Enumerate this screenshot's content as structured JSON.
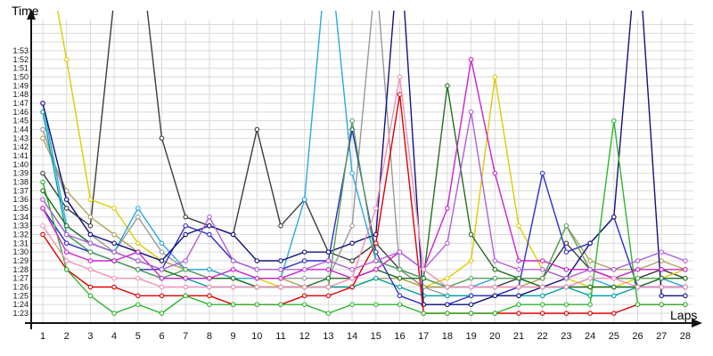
{
  "chart_data": {
    "type": "line",
    "title": "",
    "xlabel": "Laps",
    "ylabel": "Time",
    "x": [
      1,
      2,
      3,
      4,
      5,
      6,
      7,
      8,
      9,
      10,
      11,
      12,
      13,
      14,
      15,
      16,
      17,
      18,
      19,
      20,
      21,
      22,
      23,
      24,
      25,
      26,
      27,
      28
    ],
    "y_tick_labels": [
      "1:23",
      "1:24",
      "1:25",
      "1:26",
      "1:27",
      "1:28",
      "1:29",
      "1:30",
      "1:31",
      "1:32",
      "1:33",
      "1:34",
      "1:35",
      "1:36",
      "1:37",
      "1:38",
      "1:39",
      "1:40",
      "1:41",
      "1:42",
      "1:43",
      "1:44",
      "1:45",
      "1:46",
      "1:47",
      "1:48",
      "1:49",
      "1:50",
      "1:51",
      "1:52",
      "1:53"
    ],
    "y_axis_range": [
      "1:23",
      "1:53"
    ],
    "value_unit": "seconds (83 = 1:23, values above 117 run off the top of the plot)",
    "grid": true,
    "legend": "none",
    "marker": "open-circle",
    "series": [
      {
        "name": "black",
        "color": "#3c3c3c",
        "values": [
          99,
          95,
          93,
          119,
          127,
          103,
          94,
          93,
          92,
          104,
          93,
          96,
          90,
          89,
          91,
          88,
          86,
          86,
          86,
          86,
          87,
          87,
          91,
          88,
          87,
          87,
          88,
          87
        ]
      },
      {
        "name": "gray",
        "color": "#999999",
        "values": [
          104,
          96,
          92,
          90,
          94,
          90,
          88,
          87,
          87,
          87,
          87,
          87,
          87,
          93,
          122,
          88,
          86,
          85,
          85,
          85,
          86,
          86,
          86,
          86,
          86,
          86,
          86,
          86
        ]
      },
      {
        "name": "yellow",
        "color": "#ddcc00",
        "values": [
          127,
          112,
          96,
          95,
          91,
          89,
          88,
          88,
          87,
          87,
          86,
          86,
          86,
          86,
          87,
          87,
          86,
          87,
          89,
          110,
          93,
          88,
          87,
          86,
          86,
          87,
          87,
          88
        ]
      },
      {
        "name": "olive",
        "color": "#b0a060",
        "values": [
          103,
          97,
          94,
          92,
          90,
          89,
          88,
          88,
          87,
          87,
          87,
          86,
          86,
          86,
          87,
          87,
          86,
          86,
          86,
          86,
          86,
          87,
          93,
          89,
          88,
          88,
          89,
          88
        ]
      },
      {
        "name": "cyan",
        "color": "#2aa8e0",
        "values": [
          107,
          93,
          91,
          90,
          95,
          91,
          88,
          88,
          87,
          87,
          87,
          96,
          126,
          99,
          89,
          88,
          87,
          86,
          86,
          87,
          87,
          86,
          86,
          87,
          86,
          86,
          87,
          86
        ]
      },
      {
        "name": "teal",
        "color": "#00a0a0",
        "values": [
          106,
          92,
          90,
          89,
          88,
          87,
          87,
          86,
          86,
          86,
          86,
          86,
          86,
          86,
          87,
          86,
          85,
          85,
          85,
          85,
          85,
          85,
          86,
          85,
          85,
          86,
          86,
          86
        ]
      },
      {
        "name": "blue",
        "color": "#2d2dcc",
        "values": [
          95,
          91,
          90,
          89,
          88,
          88,
          93,
          92,
          89,
          88,
          88,
          89,
          89,
          104,
          90,
          85,
          84,
          84,
          85,
          85,
          86,
          99,
          90,
          91,
          94,
          86,
          86,
          86
        ]
      },
      {
        "name": "navy",
        "color": "#121280",
        "values": [
          107,
          96,
          92,
          91,
          90,
          89,
          92,
          93,
          92,
          89,
          89,
          90,
          90,
          91,
          92,
          126,
          84,
          84,
          84,
          85,
          85,
          86,
          87,
          91,
          94,
          126,
          85,
          85
        ]
      },
      {
        "name": "red",
        "color": "#e00000",
        "values": [
          92,
          88,
          86,
          86,
          85,
          85,
          85,
          85,
          84,
          84,
          84,
          85,
          85,
          86,
          91,
          108,
          83,
          83,
          83,
          83,
          83,
          83,
          83,
          83,
          83,
          84,
          84,
          84
        ]
      },
      {
        "name": "green",
        "color": "#2db52d",
        "values": [
          98,
          88,
          85,
          83,
          84,
          83,
          85,
          84,
          84,
          84,
          84,
          84,
          83,
          84,
          84,
          84,
          83,
          83,
          83,
          83,
          84,
          84,
          84,
          84,
          105,
          84,
          84,
          84
        ]
      },
      {
        "name": "sea-green",
        "color": "#55a055",
        "values": [
          96,
          92,
          90,
          89,
          88,
          87,
          88,
          87,
          87,
          86,
          86,
          86,
          86,
          105,
          89,
          88,
          87,
          86,
          87,
          87,
          87,
          87,
          93,
          88,
          87,
          87,
          87,
          87
        ]
      },
      {
        "name": "dark-green",
        "color": "#207020",
        "values": [
          97,
          93,
          91,
          90,
          89,
          88,
          87,
          87,
          87,
          86,
          86,
          86,
          87,
          87,
          88,
          87,
          87,
          109,
          92,
          88,
          87,
          86,
          86,
          86,
          86,
          86,
          87,
          87
        ]
      },
      {
        "name": "magenta",
        "color": "#cc22cc",
        "values": [
          95,
          90,
          89,
          89,
          90,
          87,
          87,
          87,
          88,
          87,
          87,
          88,
          88,
          87,
          88,
          90,
          88,
          95,
          112,
          99,
          89,
          89,
          88,
          88,
          87,
          88,
          88,
          88
        ]
      },
      {
        "name": "violet",
        "color": "#b060d8",
        "values": [
          96,
          92,
          91,
          90,
          89,
          88,
          89,
          94,
          89,
          88,
          88,
          88,
          89,
          88,
          89,
          90,
          88,
          91,
          106,
          89,
          88,
          88,
          87,
          88,
          88,
          89,
          90,
          89
        ]
      },
      {
        "name": "pink",
        "color": "#f090b8",
        "values": [
          93,
          89,
          88,
          87,
          87,
          86,
          86,
          86,
          86,
          86,
          86,
          86,
          86,
          87,
          95,
          110,
          88,
          86,
          86,
          86,
          86,
          86,
          86,
          87,
          87,
          86,
          86,
          86
        ]
      }
    ],
    "style": {
      "grid_color": "#d9d9d9",
      "axis_color": "#111111",
      "tick_label_color": "#111111",
      "background": "#ffffff"
    }
  }
}
